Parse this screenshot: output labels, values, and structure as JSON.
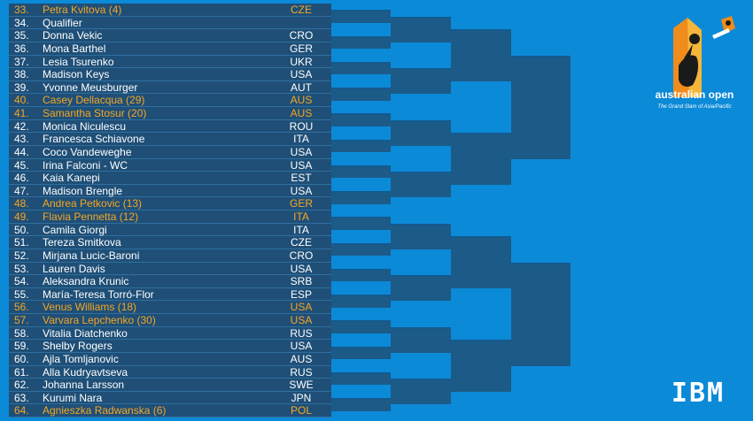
{
  "draw": [
    {
      "num": "33.",
      "name": "Petra Kvitova (4)",
      "country": "CZE",
      "seeded": true
    },
    {
      "num": "34.",
      "name": "Qualifier",
      "country": "",
      "seeded": false
    },
    {
      "num": "35.",
      "name": "Donna Vekic",
      "country": "CRO",
      "seeded": false
    },
    {
      "num": "36.",
      "name": "Mona Barthel",
      "country": "GER",
      "seeded": false
    },
    {
      "num": "37.",
      "name": "Lesia Tsurenko",
      "country": "UKR",
      "seeded": false
    },
    {
      "num": "38.",
      "name": "Madison Keys",
      "country": "USA",
      "seeded": false
    },
    {
      "num": "39.",
      "name": "Yvonne Meusburger",
      "country": "AUT",
      "seeded": false
    },
    {
      "num": "40.",
      "name": "Casey Dellacqua (29)",
      "country": "AUS",
      "seeded": true
    },
    {
      "num": "41.",
      "name": "Samantha Stosur (20)",
      "country": "AUS",
      "seeded": true
    },
    {
      "num": "42.",
      "name": "Monica Niculescu",
      "country": "ROU",
      "seeded": false
    },
    {
      "num": "43.",
      "name": "Francesca Schiavone",
      "country": "ITA",
      "seeded": false
    },
    {
      "num": "44.",
      "name": "Coco Vandeweghe",
      "country": "USA",
      "seeded": false
    },
    {
      "num": "45.",
      "name": "Irina Falconi - WC",
      "country": "USA",
      "seeded": false
    },
    {
      "num": "46.",
      "name": "Kaia Kanepi",
      "country": "EST",
      "seeded": false
    },
    {
      "num": "47.",
      "name": "Madison Brengle",
      "country": "USA",
      "seeded": false
    },
    {
      "num": "48.",
      "name": "Andrea Petkovic (13)",
      "country": "GER",
      "seeded": true
    },
    {
      "num": "49.",
      "name": "Flavia Pennetta (12)",
      "country": "ITA",
      "seeded": true
    },
    {
      "num": "50.",
      "name": "Camila Giorgi",
      "country": "ITA",
      "seeded": false
    },
    {
      "num": "51.",
      "name": "Tereza Smitkova",
      "country": "CZE",
      "seeded": false
    },
    {
      "num": "52.",
      "name": "Mirjana Lucic-Baroni",
      "country": "CRO",
      "seeded": false
    },
    {
      "num": "53.",
      "name": "Lauren Davis",
      "country": "USA",
      "seeded": false
    },
    {
      "num": "54.",
      "name": "Aleksandra Krunic",
      "country": "SRB",
      "seeded": false
    },
    {
      "num": "55.",
      "name": "María-Teresa Torró-Flor",
      "country": "ESP",
      "seeded": false
    },
    {
      "num": "56.",
      "name": "Venus Williams (18)",
      "country": "USA",
      "seeded": true
    },
    {
      "num": "57.",
      "name": "Varvara Lepchenko (30)",
      "country": "USA",
      "seeded": true
    },
    {
      "num": "58.",
      "name": "Vitalia Diatchenko",
      "country": "RUS",
      "seeded": false
    },
    {
      "num": "59.",
      "name": "Shelby Rogers",
      "country": "USA",
      "seeded": false
    },
    {
      "num": "60.",
      "name": "Ajla Tomljanovic",
      "country": "AUS",
      "seeded": false
    },
    {
      "num": "61.",
      "name": "Alla Kudryavtseva",
      "country": "RUS",
      "seeded": false
    },
    {
      "num": "62.",
      "name": "Johanna Larsson",
      "country": "SWE",
      "seeded": false
    },
    {
      "num": "63.",
      "name": "Kurumi Nara",
      "country": "JPN",
      "seeded": false
    },
    {
      "num": "64.",
      "name": "Agnieszka Radwanska (6)",
      "country": "POL",
      "seeded": true
    }
  ],
  "logo": {
    "line1": "australian open",
    "line2": "The Grand Slam of Asia/Pacific"
  },
  "sponsor": {
    "name": "IBM"
  },
  "colors": {
    "background": "#0b8ad8",
    "table": "#1f4f77",
    "seeded_text": "#f5a623",
    "text": "#ffffff",
    "bracket": "#1c5a87"
  }
}
